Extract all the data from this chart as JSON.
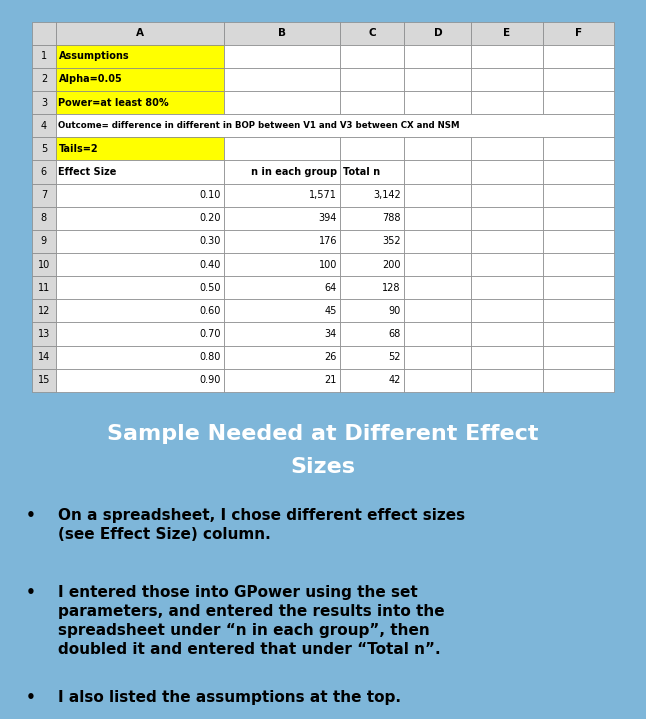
{
  "bg_color": "#7EB6D9",
  "spreadsheet": {
    "col_headers": [
      "",
      "A",
      "B",
      "C",
      "D",
      "E",
      "F"
    ],
    "rows": [
      {
        "row": 1,
        "A": "Assumptions",
        "A_bg": "#FFFF00",
        "A_bold": true,
        "A_align": "left"
      },
      {
        "row": 2,
        "A": "Alpha=0.05",
        "A_bg": "#FFFF00",
        "A_bold": true,
        "A_align": "left"
      },
      {
        "row": 3,
        "A": "Power=at least 80%",
        "A_bg": "#FFFF00",
        "A_bold": true,
        "A_align": "left"
      },
      {
        "row": 4,
        "A": "Outcome= difference in different in BOP between V1 and V3 between CX and NSM",
        "A_bold": true,
        "A_align": "left",
        "A_span": true
      },
      {
        "row": 5,
        "A": "Tails=2",
        "A_bg": "#FFFF00",
        "A_bold": true,
        "A_align": "left"
      },
      {
        "row": 6,
        "A": "Effect Size",
        "A_bold": true,
        "A_align": "left",
        "B": "n in each group",
        "B_bold": true,
        "B_align": "right",
        "C": "Total n",
        "C_bold": true,
        "C_align": "left"
      },
      {
        "row": 7,
        "A": "0.10",
        "A_align": "right",
        "B": "1,571",
        "B_align": "right",
        "C": "3,142",
        "C_align": "right"
      },
      {
        "row": 8,
        "A": "0.20",
        "A_align": "right",
        "B": "394",
        "B_align": "right",
        "C": "788",
        "C_align": "right"
      },
      {
        "row": 9,
        "A": "0.30",
        "A_align": "right",
        "B": "176",
        "B_align": "right",
        "C": "352",
        "C_align": "right"
      },
      {
        "row": 10,
        "A": "0.40",
        "A_align": "right",
        "B": "100",
        "B_align": "right",
        "C": "200",
        "C_align": "right"
      },
      {
        "row": 11,
        "A": "0.50",
        "A_align": "right",
        "B": "64",
        "B_align": "right",
        "C": "128",
        "C_align": "right"
      },
      {
        "row": 12,
        "A": "0.60",
        "A_align": "right",
        "B": "45",
        "B_align": "right",
        "C": "90",
        "C_align": "right"
      },
      {
        "row": 13,
        "A": "0.70",
        "A_align": "right",
        "B": "34",
        "B_align": "right",
        "C": "68",
        "C_align": "right"
      },
      {
        "row": 14,
        "A": "0.80",
        "A_align": "right",
        "B": "26",
        "B_align": "right",
        "C": "52",
        "C_align": "right"
      },
      {
        "row": 15,
        "A": "0.90",
        "A_align": "right",
        "B": "21",
        "B_align": "right",
        "C": "42",
        "C_align": "right"
      }
    ]
  },
  "title_line1": "Sample Needed at Different Effect",
  "title_line2": "Sizes",
  "title_color": "#FFFFFF",
  "title_bg": "#000000",
  "bullets": [
    "On a spreadsheet, I chose different effect sizes\n(see Effect Size) column.",
    "I entered those into GPower using the set\nparameters, and entered the results into the\nspreadsheet under “n in each group”, then\ndoubled it and entered that under “Total n”.",
    "I also listed the assumptions at the top."
  ],
  "bullet_fontsize": 11,
  "title_fontsize": 16
}
